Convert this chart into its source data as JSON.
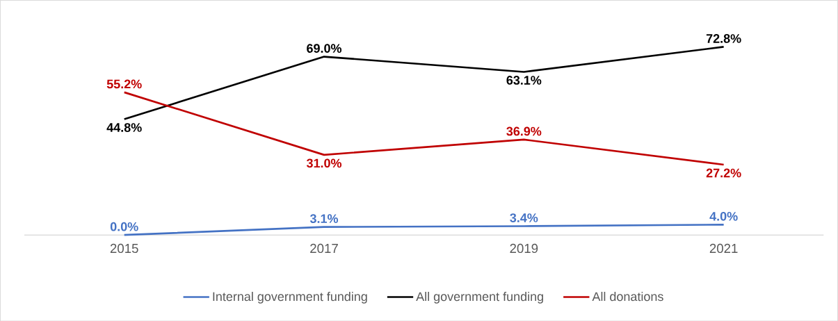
{
  "chart_data": {
    "type": "line",
    "categories": [
      "2015",
      "2017",
      "2019",
      "2021"
    ],
    "series": [
      {
        "name": "Internal government funding",
        "color": "#4472c4",
        "values": [
          0.0,
          3.1,
          3.4,
          4.0
        ],
        "value_labels": [
          "0.0%",
          "3.1%",
          "3.4%",
          "4.0%"
        ]
      },
      {
        "name": "All government funding",
        "color": "#000000",
        "values": [
          44.8,
          69.0,
          63.1,
          72.8
        ],
        "value_labels": [
          "44.8%",
          "69.0%",
          "63.1%",
          "72.8%"
        ]
      },
      {
        "name": "All donations",
        "color": "#c00000",
        "values": [
          55.2,
          31.0,
          36.9,
          27.2
        ],
        "value_labels": [
          "55.2%",
          "31.0%",
          "36.9%",
          "27.2%"
        ]
      }
    ],
    "legend": "bottom",
    "marker": "none",
    "line_style": "solid"
  }
}
